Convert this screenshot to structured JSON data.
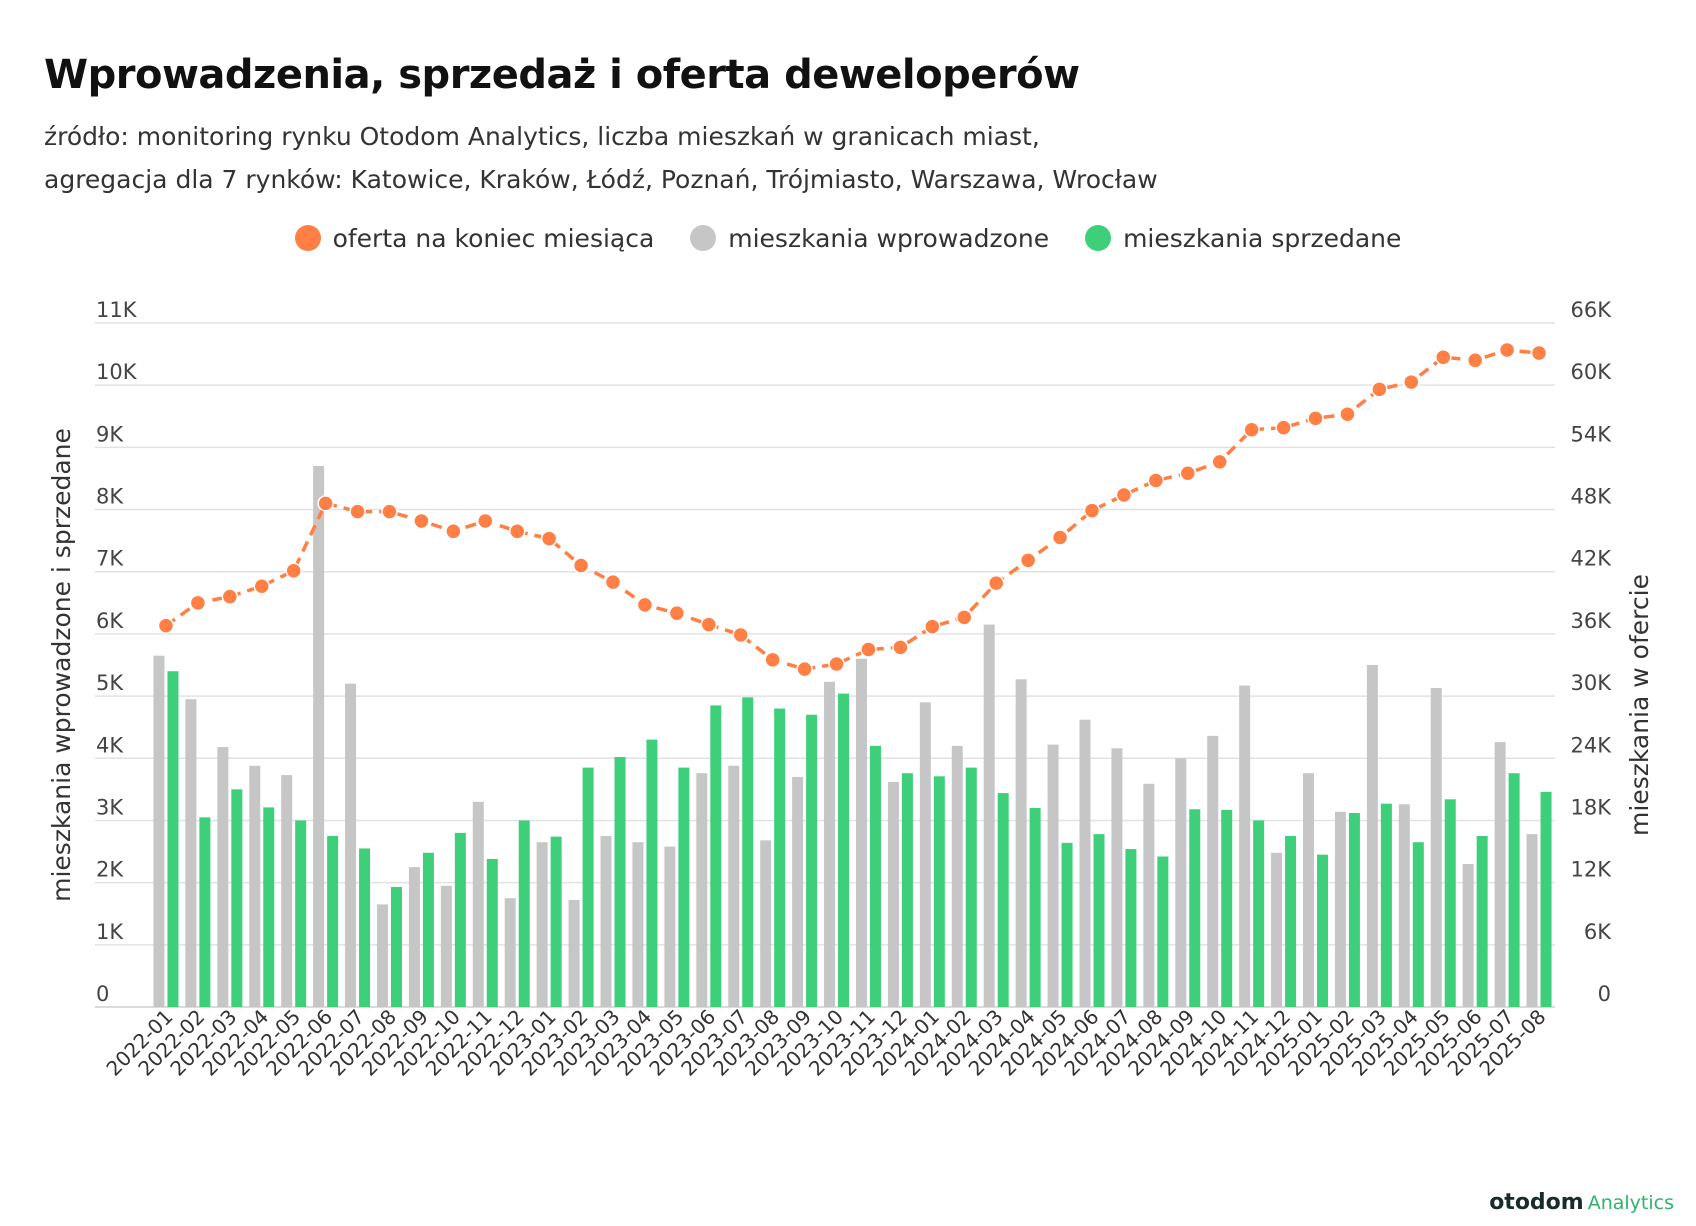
{
  "title": "Wprowadzenia, sprzedaż i oferta deweloperów",
  "subtitle_line1": "źródło: monitoring rynku Otodom Analytics, liczba mieszkań w granicach miast,",
  "subtitle_line2": "agregacja dla 7 rynków: Katowice, Kraków, Łódź, Poznań, Trójmiasto, Warszawa, Wrocław",
  "legend": [
    {
      "label": "oferta na koniec miesiąca",
      "color": "#ff7f44"
    },
    {
      "label": "mieszkania wprowadzone",
      "color": "#c6c6c6"
    },
    {
      "label": "mieszkania sprzedane",
      "color": "#3ecf7a"
    }
  ],
  "brand": {
    "main": "otodom",
    "sub": "Analytics"
  },
  "chart_data": {
    "type": "bar",
    "categories": [
      "2022-01",
      "2022-02",
      "2022-03",
      "2022-04",
      "2022-05",
      "2022-06",
      "2022-07",
      "2022-08",
      "2022-09",
      "2022-10",
      "2022-11",
      "2022-12",
      "2023-01",
      "2023-02",
      "2023-03",
      "2023-04",
      "2023-05",
      "2023-06",
      "2023-07",
      "2023-08",
      "2023-09",
      "2023-10",
      "2023-11",
      "2023-12",
      "2024-01",
      "2024-02",
      "2024-03",
      "2024-04",
      "2024-05",
      "2024-06",
      "2024-07",
      "2024-08",
      "2024-09",
      "2024-10",
      "2024-11",
      "2024-12",
      "2025-01",
      "2025-02",
      "2025-03",
      "2025-04",
      "2025-05",
      "2025-06",
      "2025-07",
      "2025-08"
    ],
    "ylabel_left": "mieszkania wprowadzone i sprzedane",
    "ylabel_right": "mieszkania w ofercie",
    "ylim_left": [
      0,
      11000
    ],
    "ylim_right": [
      0,
      66000
    ],
    "yticks_left": [
      "0",
      "1K",
      "2K",
      "3K",
      "4K",
      "5K",
      "6K",
      "7K",
      "8K",
      "9K",
      "10K",
      "11K"
    ],
    "yticks_right": [
      "0",
      "6K",
      "12K",
      "18K",
      "24K",
      "30K",
      "36K",
      "42K",
      "48K",
      "54K",
      "60K",
      "66K"
    ],
    "grid": true,
    "series": [
      {
        "name": "mieszkania wprowadzone",
        "type": "bar",
        "axis": "left",
        "color": "#c6c6c6",
        "values": [
          5650,
          4950,
          4180,
          3880,
          3730,
          8700,
          5200,
          1650,
          2250,
          1950,
          3300,
          1750,
          2650,
          1720,
          2750,
          2650,
          2580,
          3760,
          3880,
          2680,
          3700,
          5230,
          5600,
          3620,
          4900,
          4200,
          6150,
          5270,
          4220,
          4620,
          4160,
          3590,
          4000,
          4360,
          5170,
          2480,
          3760,
          3140,
          5500,
          3260,
          5130,
          2300,
          4260,
          2780
        ]
      },
      {
        "name": "mieszkania sprzedane",
        "type": "bar",
        "axis": "left",
        "color": "#3ecf7a",
        "values": [
          5400,
          3050,
          3500,
          3210,
          3000,
          2750,
          2550,
          1930,
          2480,
          2800,
          2380,
          3000,
          2740,
          3850,
          4020,
          4300,
          3850,
          4850,
          4980,
          4800,
          4700,
          5040,
          4200,
          3760,
          3710,
          3850,
          3440,
          3200,
          2640,
          2780,
          2540,
          2420,
          3180,
          3170,
          3000,
          2750,
          2450,
          3120,
          3270,
          2650,
          3340,
          2750,
          3760,
          3460
        ]
      },
      {
        "name": "oferta na koniec miesiąca",
        "type": "line",
        "axis": "right",
        "color": "#ff7f44",
        "values": [
          36800,
          39000,
          39600,
          40600,
          42100,
          48600,
          47800,
          47800,
          46900,
          45900,
          46900,
          45900,
          45200,
          42600,
          41000,
          38800,
          38000,
          36900,
          35900,
          33500,
          32600,
          33100,
          34500,
          34700,
          36700,
          37600,
          40900,
          43100,
          45300,
          47900,
          49400,
          50800,
          51500,
          52600,
          55700,
          55900,
          56800,
          57200,
          59600,
          60300,
          62700,
          62400,
          63400,
          63100
        ]
      }
    ]
  }
}
